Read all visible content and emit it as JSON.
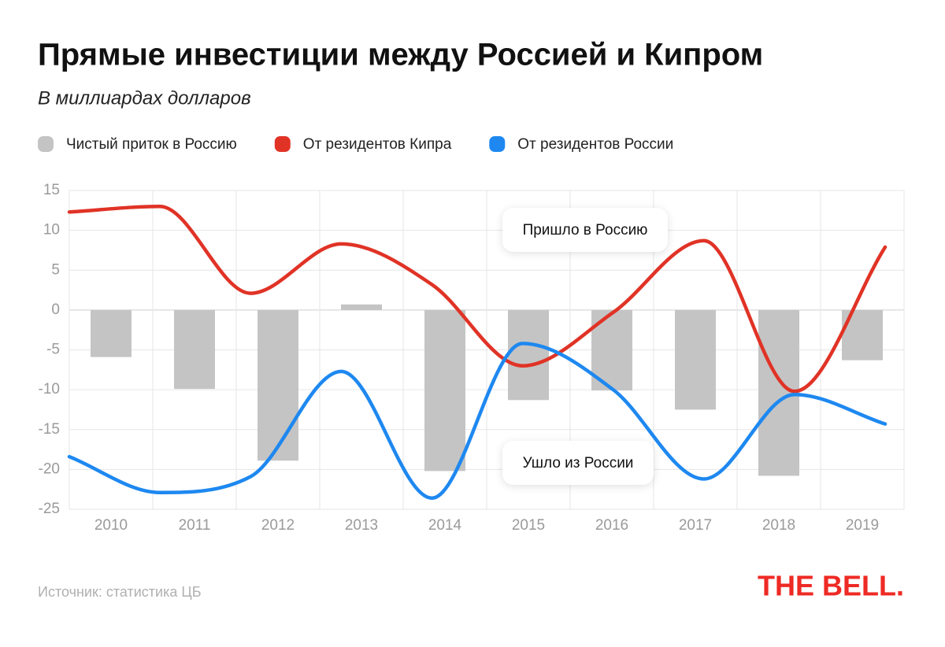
{
  "chart_data": {
    "type": "bar",
    "title": "Прямые инвестиции между Россией и Кипром",
    "subtitle": "В миллиардах долларов",
    "categories": [
      "2010",
      "2011",
      "2012",
      "2013",
      "2014",
      "2015",
      "2016",
      "2017",
      "2018",
      "2019"
    ],
    "series": [
      {
        "name": "Чистый приток в Россию",
        "type": "bar",
        "color": "#c4c4c4",
        "values": [
          -5.9,
          -9.9,
          -18.9,
          0.7,
          -20.2,
          -11.3,
          -10.1,
          -12.5,
          -20.8,
          -6.3
        ]
      },
      {
        "name": "От резидентов Кипра",
        "type": "line",
        "color": "#e03326",
        "values": [
          12.3,
          13.0,
          2.1,
          8.3,
          3.2,
          -7.0,
          -0.3,
          8.7,
          -10.2,
          7.9
        ]
      },
      {
        "name": "От резидентов России",
        "type": "line",
        "color": "#1e88f0",
        "values": [
          -18.4,
          -22.9,
          -20.9,
          -7.7,
          -23.6,
          -4.2,
          -10.0,
          -21.2,
          -10.6,
          -14.3
        ]
      }
    ],
    "ylim": [
      -25,
      15
    ],
    "yticks": [
      -25,
      -20,
      -15,
      -10,
      -5,
      0,
      5,
      10,
      15
    ],
    "grid": true,
    "annotations": [
      "Пришло в Россию",
      "Ушло из России"
    ],
    "source": "Источник: статистика ЦБ",
    "logo": "THE BELL."
  }
}
